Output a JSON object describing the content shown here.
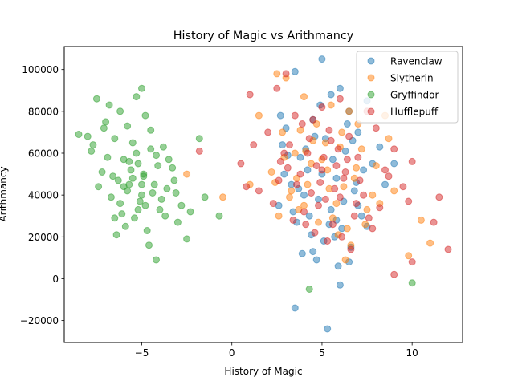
{
  "chart_data": {
    "type": "scatter",
    "title": "History of Magic vs Arithmancy",
    "xlabel": "History of Magic",
    "ylabel": "Arithmancy",
    "xlim": [
      -9.3,
      12.8
    ],
    "ylim": [
      -30500,
      111000
    ],
    "xticks": [
      -5,
      0,
      5,
      10
    ],
    "yticks": [
      -20000,
      0,
      20000,
      40000,
      60000,
      80000,
      100000
    ],
    "xtick_labels": [
      "−5",
      "0",
      "5",
      "10"
    ],
    "ytick_labels": [
      "−20000",
      "0",
      "20000",
      "40000",
      "60000",
      "80000",
      "100000"
    ],
    "grid": false,
    "legend_position": "top-right",
    "point_alpha": 0.5,
    "series": [
      {
        "name": "Ravenclaw",
        "color": "#1f77b4",
        "points": [
          [
            5.0,
            105000
          ],
          [
            3.5,
            99000
          ],
          [
            6.0,
            91000
          ],
          [
            5.5,
            88000
          ],
          [
            7.5,
            85000
          ],
          [
            6.5,
            80000
          ],
          [
            4.5,
            76000
          ],
          [
            3.0,
            72000
          ],
          [
            7.0,
            70000
          ],
          [
            5.2,
            67000
          ],
          [
            2.8,
            64000
          ],
          [
            6.3,
            61000
          ],
          [
            3.8,
            58000
          ],
          [
            7.8,
            55000
          ],
          [
            4.2,
            52000
          ],
          [
            5.8,
            48000
          ],
          [
            3.3,
            45000
          ],
          [
            6.8,
            42000
          ],
          [
            4.8,
            38000
          ],
          [
            2.6,
            35000
          ],
          [
            5.5,
            33000
          ],
          [
            7.2,
            30000
          ],
          [
            3.6,
            27000
          ],
          [
            6.1,
            24000
          ],
          [
            4.4,
            21000
          ],
          [
            5.1,
            18000
          ],
          [
            6.6,
            15000
          ],
          [
            3.9,
            12000
          ],
          [
            4.7,
            9000
          ],
          [
            5.9,
            6000
          ],
          [
            3.5,
            -14000
          ],
          [
            5.3,
            -24000
          ],
          [
            6.0,
            -3000
          ],
          [
            7.5,
            25000
          ],
          [
            2.9,
            50000
          ],
          [
            8.2,
            63000
          ],
          [
            4.0,
            40000
          ],
          [
            5.6,
            57000
          ],
          [
            6.9,
            46000
          ],
          [
            3.1,
            59000
          ],
          [
            4.3,
            30000
          ],
          [
            7.0,
            35000
          ],
          [
            5.4,
            26000
          ],
          [
            6.2,
            37000
          ],
          [
            4.6,
            68000
          ],
          [
            9.0,
            55000
          ],
          [
            3.7,
            43000
          ],
          [
            5.7,
            20000
          ],
          [
            6.4,
            74000
          ],
          [
            8.5,
            45000
          ],
          [
            4.9,
            83000
          ],
          [
            2.7,
            78000
          ],
          [
            6.7,
            66000
          ],
          [
            5.0,
            50000
          ],
          [
            4.1,
            62000
          ],
          [
            7.3,
            52000
          ],
          [
            3.4,
            32000
          ],
          [
            5.8,
            28000
          ],
          [
            6.5,
            8000
          ],
          [
            4.5,
            13000
          ]
        ]
      },
      {
        "name": "Slytherin",
        "color": "#ff7f0e",
        "points": [
          [
            2.5,
            98000
          ],
          [
            3.0,
            96000
          ],
          [
            4.0,
            87000
          ],
          [
            5.5,
            83000
          ],
          [
            6.5,
            80000
          ],
          [
            8.5,
            78000
          ],
          [
            7.0,
            74000
          ],
          [
            2.8,
            70000
          ],
          [
            4.5,
            66000
          ],
          [
            6.0,
            63000
          ],
          [
            3.5,
            60000
          ],
          [
            5.0,
            57000
          ],
          [
            8.0,
            54000
          ],
          [
            2.2,
            51000
          ],
          [
            6.8,
            48000
          ],
          [
            4.2,
            45000
          ],
          [
            9.0,
            42000
          ],
          [
            3.2,
            39000
          ],
          [
            5.8,
            36000
          ],
          [
            7.5,
            33000
          ],
          [
            2.6,
            30000
          ],
          [
            4.8,
            27000
          ],
          [
            6.4,
            24000
          ],
          [
            10.5,
            28000
          ],
          [
            11.0,
            17000
          ],
          [
            9.8,
            11000
          ],
          [
            -2.5,
            50000
          ],
          [
            -0.5,
            39000
          ],
          [
            1.0,
            45000
          ],
          [
            1.5,
            78000
          ],
          [
            5.3,
            52000
          ],
          [
            3.8,
            71000
          ],
          [
            7.2,
            62000
          ],
          [
            4.0,
            35000
          ],
          [
            6.2,
            44000
          ],
          [
            2.9,
            58000
          ],
          [
            8.7,
            67000
          ],
          [
            5.6,
            29000
          ],
          [
            3.6,
            48000
          ],
          [
            6.6,
            16000
          ],
          [
            4.4,
            55000
          ],
          [
            7.8,
            40000
          ],
          [
            5.2,
            65000
          ],
          [
            3.3,
            42000
          ],
          [
            6.9,
            53000
          ],
          [
            4.7,
            74000
          ],
          [
            8.2,
            36000
          ],
          [
            2.4,
            46000
          ],
          [
            5.9,
            21000
          ],
          [
            6.3,
            9000
          ],
          [
            4.1,
            61000
          ],
          [
            7.4,
            26000
          ],
          [
            3.7,
            33000
          ],
          [
            5.4,
            43000
          ],
          [
            6.1,
            70000
          ]
        ]
      },
      {
        "name": "Gryffindor",
        "color": "#2ca02c",
        "points": [
          [
            -7.5,
            86000
          ],
          [
            -5.0,
            91000
          ],
          [
            -5.3,
            87000
          ],
          [
            -6.8,
            83000
          ],
          [
            -6.2,
            80000
          ],
          [
            -4.8,
            78000
          ],
          [
            -7.0,
            75000
          ],
          [
            -5.8,
            73000
          ],
          [
            -4.5,
            71000
          ],
          [
            -8.5,
            69000
          ],
          [
            -6.5,
            67000
          ],
          [
            -5.5,
            65000
          ],
          [
            -3.8,
            63000
          ],
          [
            -7.8,
            61000
          ],
          [
            -4.2,
            59000
          ],
          [
            -6.0,
            57000
          ],
          [
            -5.2,
            55000
          ],
          [
            -3.3,
            53000
          ],
          [
            -7.2,
            51000
          ],
          [
            -4.9,
            49000
          ],
          [
            -6.3,
            47000
          ],
          [
            -5.7,
            45000
          ],
          [
            -3.6,
            43000
          ],
          [
            -4.4,
            41000
          ],
          [
            -6.7,
            39000
          ],
          [
            -5.1,
            37000
          ],
          [
            -2.8,
            35000
          ],
          [
            -4.0,
            33000
          ],
          [
            -6.1,
            31000
          ],
          [
            -5.4,
            29000
          ],
          [
            -3.0,
            27000
          ],
          [
            -5.9,
            25000
          ],
          [
            -4.7,
            23000
          ],
          [
            -6.4,
            21000
          ],
          [
            -2.5,
            19000
          ],
          [
            -4.6,
            16000
          ],
          [
            -4.2,
            9000
          ],
          [
            -7.4,
            44000
          ],
          [
            -3.2,
            47000
          ],
          [
            -5.6,
            52000
          ],
          [
            -6.9,
            58000
          ],
          [
            -4.3,
            45000
          ],
          [
            -5.0,
            40000
          ],
          [
            -3.9,
            38000
          ],
          [
            -6.6,
            49000
          ],
          [
            -5.3,
            60000
          ],
          [
            -4.8,
            35000
          ],
          [
            -7.7,
            64000
          ],
          [
            -3.5,
            57000
          ],
          [
            -5.8,
            42000
          ],
          [
            -2.3,
            32000
          ],
          [
            -6.2,
            36000
          ],
          [
            -4.1,
            54000
          ],
          [
            -5.5,
            48000
          ],
          [
            -3.7,
            30000
          ],
          [
            -4.5,
            62000
          ],
          [
            -6.0,
            44000
          ],
          [
            -5.2,
            33000
          ],
          [
            -7.1,
            72000
          ],
          [
            -8.0,
            68000
          ],
          [
            -1.8,
            67000
          ],
          [
            -1.5,
            39000
          ],
          [
            -0.7,
            30000
          ],
          [
            -5.7,
            56000
          ],
          [
            -4.9,
            50000
          ],
          [
            4.3,
            -5000
          ],
          [
            10.0,
            -2000
          ],
          [
            -3.1,
            41000
          ],
          [
            -6.5,
            29000
          ],
          [
            -5.0,
            45000
          ]
        ]
      },
      {
        "name": "Hufflepuff",
        "color": "#d62728",
        "points": [
          [
            3.0,
            98000
          ],
          [
            2.5,
            91000
          ],
          [
            6.0,
            86000
          ],
          [
            1.0,
            88000
          ],
          [
            5.0,
            82000
          ],
          [
            7.5,
            80000
          ],
          [
            3.5,
            78000
          ],
          [
            8.0,
            72000
          ],
          [
            4.5,
            76000
          ],
          [
            2.0,
            70000
          ],
          [
            6.5,
            68000
          ],
          [
            5.5,
            66000
          ],
          [
            3.2,
            64000
          ],
          [
            9.0,
            62000
          ],
          [
            4.2,
            60000
          ],
          [
            7.0,
            58000
          ],
          [
            2.7,
            56000
          ],
          [
            5.8,
            54000
          ],
          [
            8.5,
            52000
          ],
          [
            3.8,
            50000
          ],
          [
            6.2,
            48000
          ],
          [
            4.9,
            46000
          ],
          [
            9.5,
            44000
          ],
          [
            1.5,
            42000
          ],
          [
            7.3,
            40000
          ],
          [
            5.2,
            38000
          ],
          [
            2.3,
            36000
          ],
          [
            8.2,
            34000
          ],
          [
            4.0,
            32000
          ],
          [
            6.8,
            30000
          ],
          [
            3.4,
            28000
          ],
          [
            5.6,
            26000
          ],
          [
            9.8,
            37000
          ],
          [
            7.8,
            24000
          ],
          [
            4.6,
            22000
          ],
          [
            6.1,
            20000
          ],
          [
            5.3,
            18000
          ],
          [
            6.6,
            14000
          ],
          [
            11.5,
            39000
          ],
          [
            10.0,
            56000
          ],
          [
            11.2,
            27000
          ],
          [
            12.0,
            14000
          ],
          [
            9.0,
            2000
          ],
          [
            10.0,
            8000
          ],
          [
            0.5,
            55000
          ],
          [
            0.8,
            44000
          ],
          [
            1.2,
            64000
          ],
          [
            -1.8,
            61000
          ],
          [
            4.3,
            67000
          ],
          [
            5.0,
            52000
          ],
          [
            3.6,
            45000
          ],
          [
            6.4,
            57000
          ],
          [
            4.8,
            35000
          ],
          [
            5.9,
            62000
          ],
          [
            3.1,
            53000
          ],
          [
            7.1,
            47000
          ],
          [
            4.4,
            41000
          ],
          [
            5.4,
            71000
          ],
          [
            6.9,
            36000
          ],
          [
            2.9,
            60000
          ],
          [
            8.7,
            49000
          ],
          [
            3.9,
            74000
          ],
          [
            5.7,
            43000
          ],
          [
            4.1,
            26000
          ],
          [
            6.3,
            51000
          ],
          [
            7.6,
            29000
          ],
          [
            2.6,
            47000
          ],
          [
            5.1,
            58000
          ],
          [
            4.7,
            54000
          ],
          [
            6.0,
            39000
          ]
        ]
      }
    ]
  }
}
